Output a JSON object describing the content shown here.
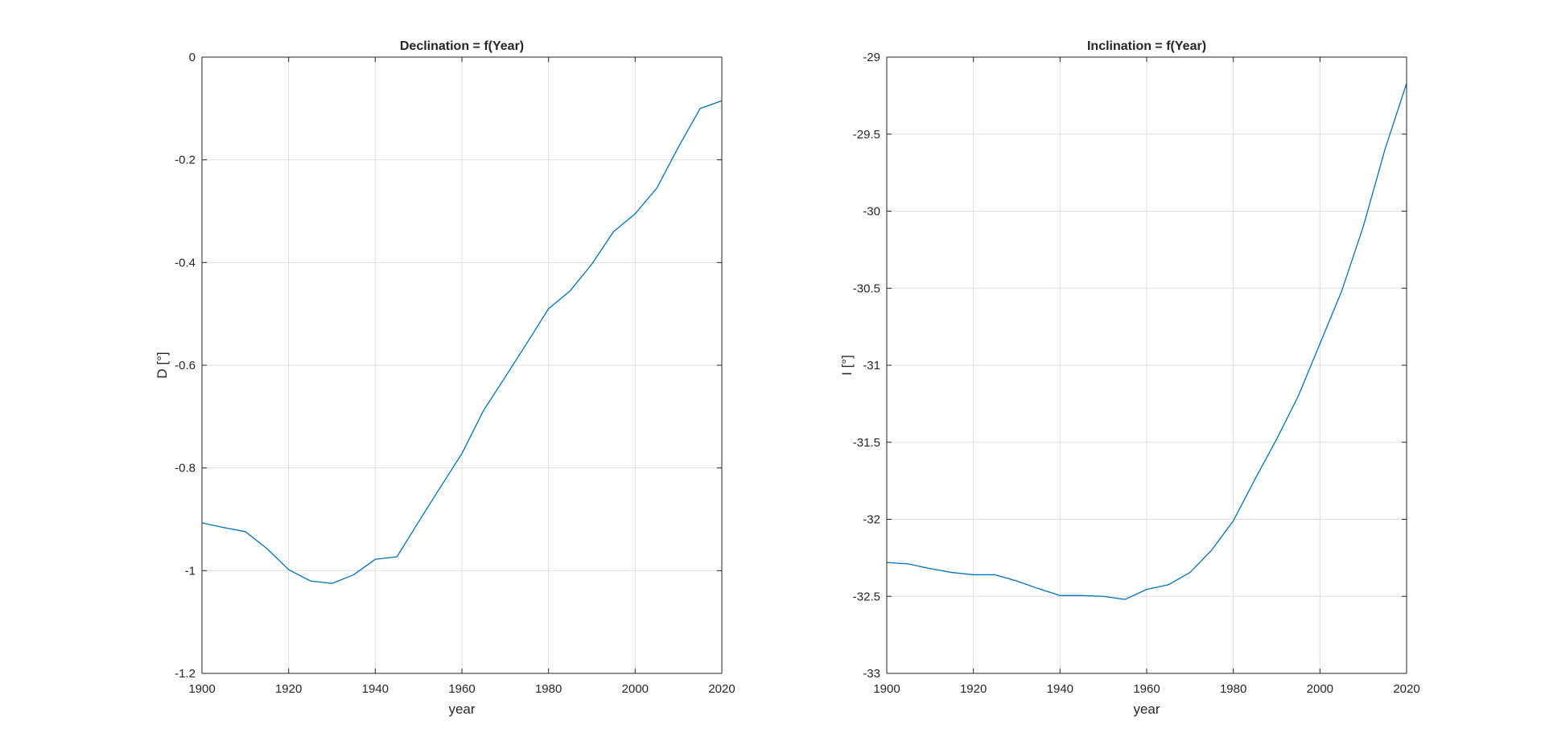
{
  "chart_data": [
    {
      "type": "line",
      "title": "Declination = f(Year)",
      "xlabel": "year",
      "ylabel": "D [°]",
      "xlim": [
        1900,
        2020
      ],
      "ylim": [
        -1.2,
        0
      ],
      "xticks": [
        1900,
        1920,
        1940,
        1960,
        1980,
        2000,
        2020
      ],
      "yticks": [
        0,
        -0.2,
        -0.4,
        -0.6,
        -0.8,
        -1,
        -1.2
      ],
      "xtick_labels": [
        "1900",
        "1920",
        "1940",
        "1960",
        "1980",
        "2000",
        "2020"
      ],
      "ytick_labels": [
        "0",
        "-0.2",
        "-0.4",
        "-0.6",
        "-0.8",
        "-1",
        "-1.2"
      ],
      "grid": true,
      "color": "#0072bd",
      "series": [
        {
          "x": [
            1900,
            1905,
            1910,
            1915,
            1920,
            1925,
            1930,
            1935,
            1940,
            1945,
            1950,
            1955,
            1960,
            1965,
            1970,
            1975,
            1980,
            1985,
            1990,
            1995,
            2000,
            2005,
            2010,
            2015,
            2020
          ],
          "values": [
            -0.907,
            -0.916,
            -0.924,
            -0.957,
            -0.998,
            -1.02,
            -1.025,
            -1.008,
            -0.978,
            -0.973,
            -0.905,
            -0.838,
            -0.772,
            -0.688,
            -0.623,
            -0.557,
            -0.49,
            -0.455,
            -0.403,
            -0.34,
            -0.305,
            -0.255,
            -0.175,
            -0.1,
            -0.085
          ]
        }
      ]
    },
    {
      "type": "line",
      "title": "Inclination = f(Year)",
      "xlabel": "year",
      "ylabel": "I [°]",
      "xlim": [
        1900,
        2020
      ],
      "ylim": [
        -33,
        -29
      ],
      "xticks": [
        1900,
        1920,
        1940,
        1960,
        1980,
        2000,
        2020
      ],
      "yticks": [
        -29,
        -29.5,
        -30,
        -30.5,
        -31,
        -31.5,
        -32,
        -32.5,
        -33
      ],
      "xtick_labels": [
        "1900",
        "1920",
        "1940",
        "1960",
        "1980",
        "2000",
        "2020"
      ],
      "ytick_labels": [
        "-29",
        "-29.5",
        "-30",
        "-30.5",
        "-31",
        "-31.5",
        "-32",
        "-32.5",
        "-33"
      ],
      "grid": true,
      "color": "#0072bd",
      "series": [
        {
          "x": [
            1900,
            1905,
            1910,
            1915,
            1920,
            1925,
            1930,
            1935,
            1940,
            1945,
            1950,
            1955,
            1960,
            1965,
            1970,
            1975,
            1980,
            1985,
            1990,
            1995,
            2000,
            2005,
            2010,
            2015,
            2020
          ],
          "values": [
            -32.28,
            -32.29,
            -32.32,
            -32.345,
            -32.36,
            -32.36,
            -32.4,
            -32.45,
            -32.495,
            -32.495,
            -32.5,
            -32.52,
            -32.455,
            -32.425,
            -32.345,
            -32.2,
            -32.01,
            -31.74,
            -31.48,
            -31.2,
            -30.86,
            -30.52,
            -30.1,
            -29.6,
            -29.17
          ]
        }
      ]
    }
  ]
}
